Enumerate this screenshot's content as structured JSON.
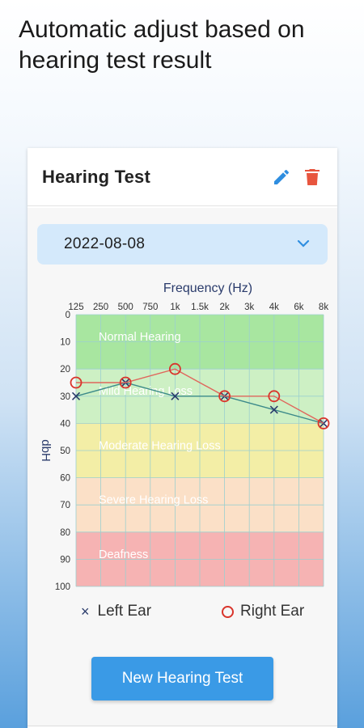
{
  "headline": "Automatic adjust based on hearing test result",
  "card": {
    "title": "Hearing Test",
    "edit_icon": "pencil-icon",
    "delete_icon": "trash-icon",
    "accent_blue": "#2f8ee0",
    "delete_red": "#e8553e"
  },
  "date_select": {
    "value": "2022-08-08",
    "icon": "chevron-down-icon"
  },
  "chart_data": {
    "type": "line",
    "title": "",
    "xlabel": "Frequency (Hz)",
    "ylabel": "dbH",
    "x": [
      "125",
      "250",
      "500",
      "750",
      "1k",
      "1.5k",
      "2k",
      "3k",
      "4k",
      "6k",
      "8k"
    ],
    "ylim": [
      0,
      100
    ],
    "y_ticks": [
      "0",
      "10",
      "20",
      "30",
      "40",
      "50",
      "60",
      "70",
      "80",
      "90",
      "100"
    ],
    "y_inverted": true,
    "grid": true,
    "bands": [
      {
        "label": "Normal Hearing",
        "from": 0,
        "to": 20,
        "color": "#a8e6a0"
      },
      {
        "label": "Mild Hearing Loss",
        "from": 20,
        "to": 40,
        "color": "#cdf0c4"
      },
      {
        "label": "Moderate Hearing Loss",
        "from": 40,
        "to": 60,
        "color": "#f3eea6"
      },
      {
        "label": "Severe Hearing Loss",
        "from": 60,
        "to": 80,
        "color": "#fbe0c7"
      },
      {
        "label": "Deafness",
        "from": 80,
        "to": 100,
        "color": "#f6b3b3"
      }
    ],
    "series": [
      {
        "name": "Left Ear",
        "marker": "x",
        "color": "#2a3b6b",
        "line_color": "#3c8a8a",
        "points": [
          [
            "125",
            30
          ],
          [
            "500",
            25
          ],
          [
            "1k",
            30
          ],
          [
            "2k",
            30
          ],
          [
            "4k",
            35
          ],
          [
            "8k",
            40
          ]
        ]
      },
      {
        "name": "Right Ear",
        "marker": "circle",
        "color": "#d9342b",
        "line_color": "#e0665c",
        "points": [
          [
            "125",
            25
          ],
          [
            "500",
            25
          ],
          [
            "1k",
            20
          ],
          [
            "2k",
            30
          ],
          [
            "4k",
            30
          ],
          [
            "8k",
            40
          ]
        ]
      }
    ]
  },
  "legend": {
    "left_symbol": "×",
    "left_label": "Left Ear",
    "right_label": "Right Ear"
  },
  "new_test_button": "New Hearing Test"
}
